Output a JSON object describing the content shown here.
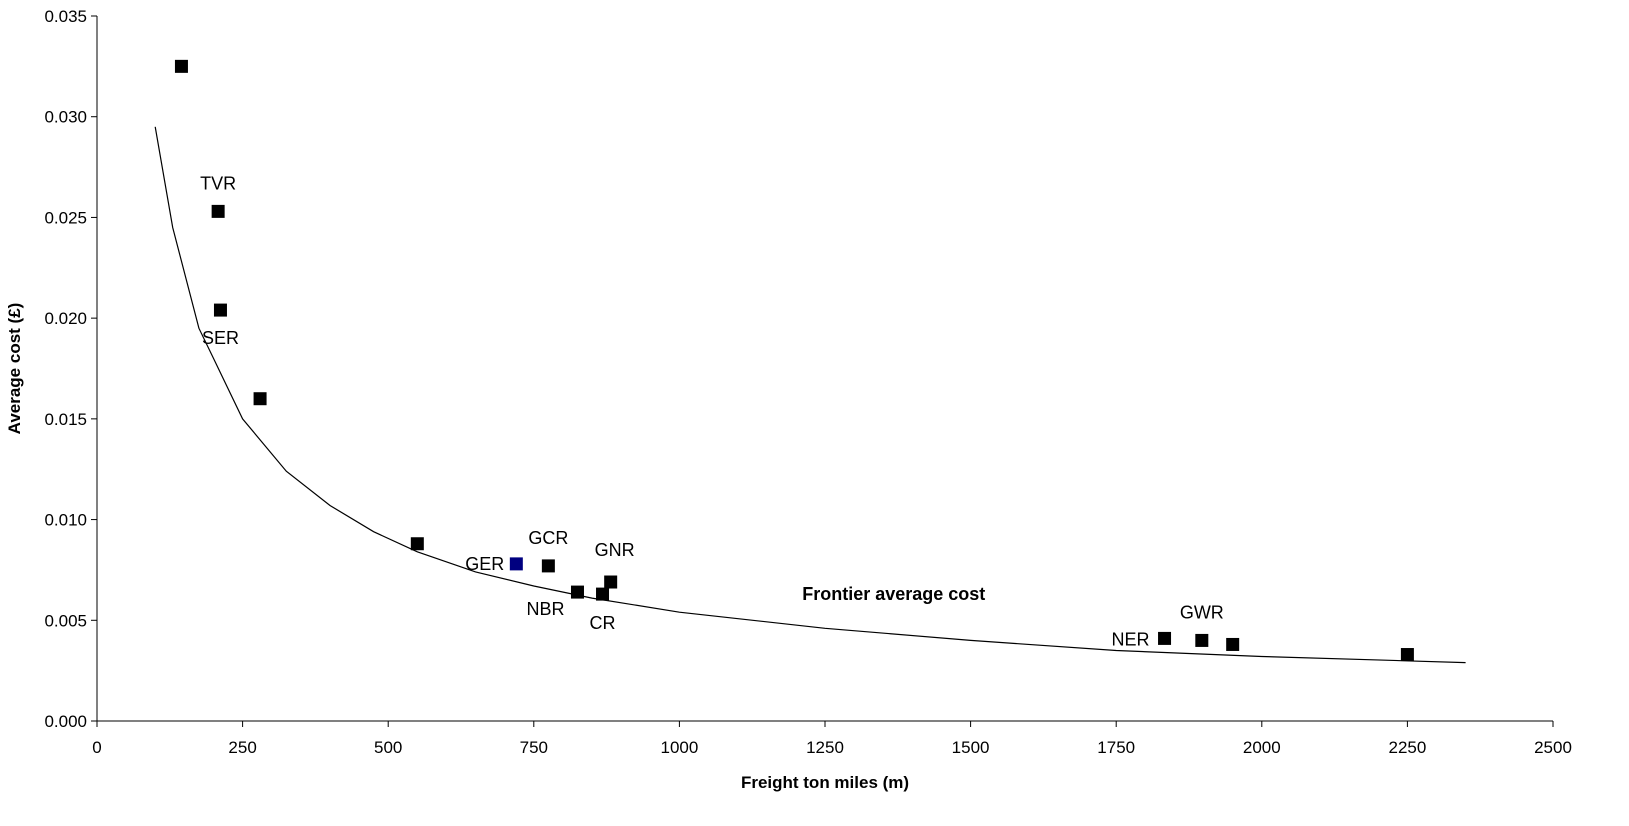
{
  "chart_data": {
    "type": "scatter",
    "title": "",
    "xlabel": "Freight ton miles (m)",
    "ylabel": "Average cost (£)",
    "xlim": [
      0,
      2500
    ],
    "ylim": [
      0,
      0.035
    ],
    "xticks": [
      0,
      250,
      500,
      750,
      1000,
      1250,
      1500,
      1750,
      2000,
      2250,
      2500
    ],
    "yticks": [
      0.0,
      0.005,
      0.01,
      0.015,
      0.02,
      0.025,
      0.03,
      0.035
    ],
    "xtick_labels": [
      "0",
      "250",
      "500",
      "750",
      "1000",
      "1250",
      "1500",
      "1750",
      "2000",
      "2250",
      "2500"
    ],
    "ytick_labels": [
      "0.000",
      "0.005",
      "0.010",
      "0.015",
      "0.020",
      "0.025",
      "0.030",
      "0.035"
    ],
    "grid": false,
    "legend": "none",
    "colors": {
      "points": "#000000",
      "highlight": "#000080",
      "curve": "#000000"
    },
    "points": [
      {
        "x": 145,
        "y": 0.0325,
        "label": ""
      },
      {
        "x": 208,
        "y": 0.0253,
        "label": "TVR"
      },
      {
        "x": 212,
        "y": 0.0204,
        "label": "SER"
      },
      {
        "x": 280,
        "y": 0.016,
        "label": ""
      },
      {
        "x": 550,
        "y": 0.0088,
        "label": ""
      },
      {
        "x": 720,
        "y": 0.0078,
        "label": "GER",
        "highlight": true
      },
      {
        "x": 775,
        "y": 0.0077,
        "label": "GCR"
      },
      {
        "x": 825,
        "y": 0.0064,
        "label": "NBR"
      },
      {
        "x": 868,
        "y": 0.0063,
        "label": "CR"
      },
      {
        "x": 882,
        "y": 0.0069,
        "label": "GNR"
      },
      {
        "x": 1833,
        "y": 0.0041,
        "label": "NER"
      },
      {
        "x": 1897,
        "y": 0.004,
        "label": "GWR"
      },
      {
        "x": 1950,
        "y": 0.0038,
        "label": ""
      },
      {
        "x": 2250,
        "y": 0.0033,
        "label": ""
      }
    ],
    "frontier": {
      "name": "Frontier average cost",
      "x": [
        100,
        130,
        175,
        200,
        250,
        325,
        400,
        475,
        550,
        650,
        750,
        850,
        1000,
        1250,
        1500,
        1750,
        2000,
        2350
      ],
      "y": [
        0.0295,
        0.0245,
        0.0195,
        0.018,
        0.015,
        0.0124,
        0.0107,
        0.0094,
        0.0084,
        0.0074,
        0.0067,
        0.0061,
        0.0054,
        0.0046,
        0.004,
        0.0035,
        0.0032,
        0.0029
      ]
    },
    "annotations": [
      {
        "text": "Frontier average cost",
        "x": 1180,
        "y": 0.006
      }
    ]
  }
}
